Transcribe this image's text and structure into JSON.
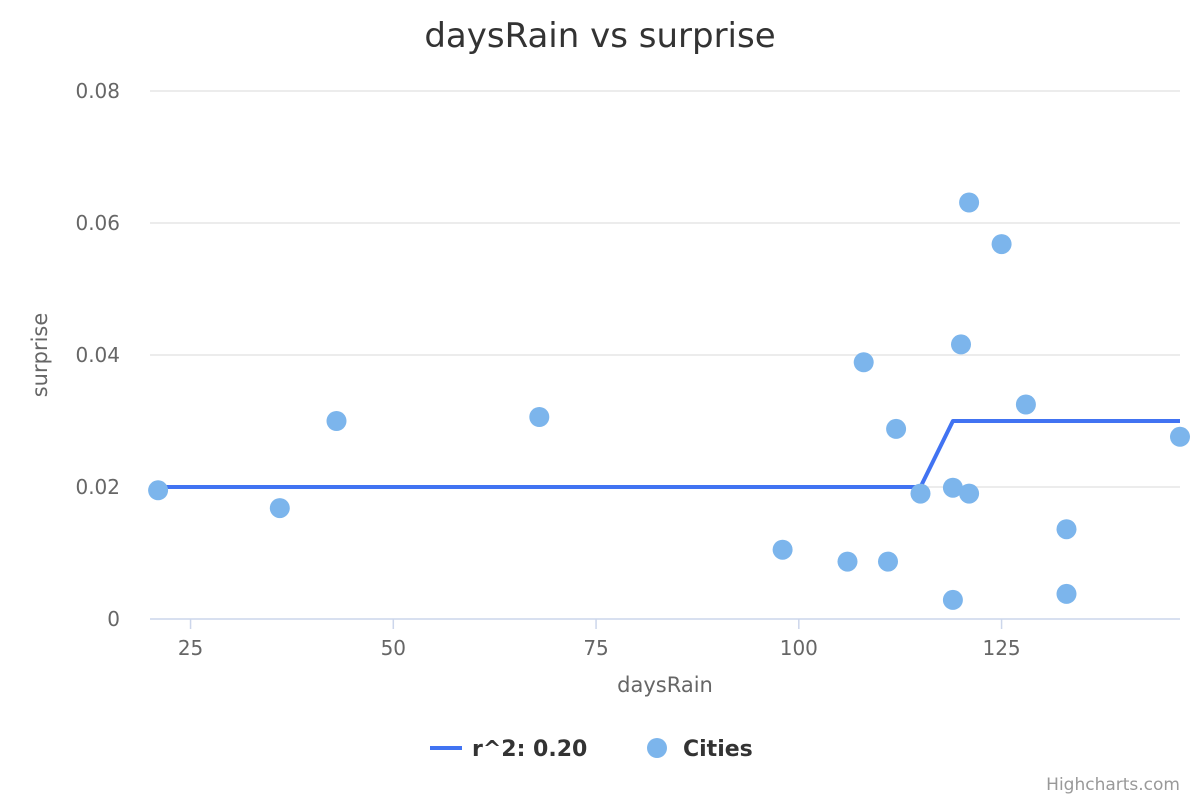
{
  "chart_data": {
    "type": "scatter",
    "title": "daysRain vs surprise",
    "xlabel": "daysRain",
    "ylabel": "surprise",
    "xlim": [
      20,
      147
    ],
    "ylim": [
      0,
      0.08
    ],
    "x_ticks": [
      25,
      50,
      75,
      100,
      125
    ],
    "y_ticks": [
      0,
      0.02,
      0.04,
      0.06,
      0.08
    ],
    "y_tick_labels": [
      "0",
      "0.02",
      "0.04",
      "0.06",
      "0.08"
    ],
    "grid": true,
    "legend_position": "bottom-center",
    "series": [
      {
        "name": "r^2: 0.20",
        "type": "line",
        "color": "#4173f2",
        "points": [
          {
            "x": 21,
            "y": 0.02
          },
          {
            "x": 115,
            "y": 0.02
          },
          {
            "x": 119,
            "y": 0.03
          },
          {
            "x": 147,
            "y": 0.03
          }
        ]
      },
      {
        "name": "Cities",
        "type": "scatter",
        "color": "#7cb5ec",
        "points": [
          {
            "x": 21,
            "y": 0.0195
          },
          {
            "x": 36,
            "y": 0.0168
          },
          {
            "x": 43,
            "y": 0.03
          },
          {
            "x": 68,
            "y": 0.0306
          },
          {
            "x": 98,
            "y": 0.0105
          },
          {
            "x": 106,
            "y": 0.0087
          },
          {
            "x": 108,
            "y": 0.0389
          },
          {
            "x": 111,
            "y": 0.0087
          },
          {
            "x": 112,
            "y": 0.0288
          },
          {
            "x": 115,
            "y": 0.019
          },
          {
            "x": 119,
            "y": 0.0199
          },
          {
            "x": 119,
            "y": 0.0029
          },
          {
            "x": 120,
            "y": 0.0416
          },
          {
            "x": 121,
            "y": 0.0631
          },
          {
            "x": 121,
            "y": 0.019
          },
          {
            "x": 125,
            "y": 0.0568
          },
          {
            "x": 128,
            "y": 0.0325
          },
          {
            "x": 133,
            "y": 0.0136
          },
          {
            "x": 133,
            "y": 0.0038
          },
          {
            "x": 147,
            "y": 0.0276
          }
        ]
      }
    ]
  },
  "credits": "Highcharts.com"
}
